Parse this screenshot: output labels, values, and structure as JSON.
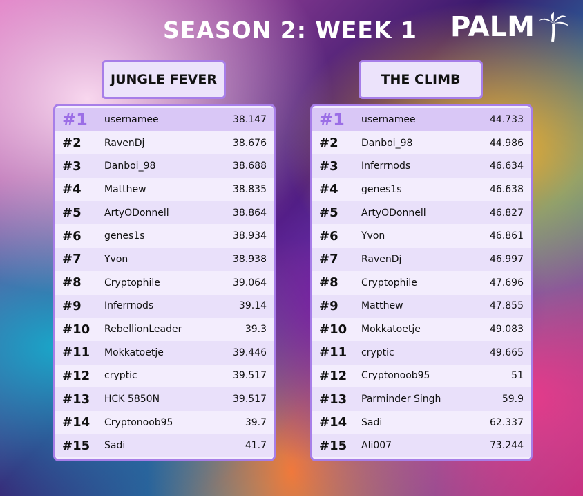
{
  "header": {
    "title": "SEASON 2: WEEK 1",
    "logo": "PALM"
  },
  "boards": [
    {
      "title": "JUNGLE FEVER",
      "rows": [
        [
          "#1",
          "usernamee",
          38.147
        ],
        [
          "#2",
          "RavenDj",
          38.676
        ],
        [
          "#3",
          "Danboi_98",
          38.688
        ],
        [
          "#4",
          "Matthew",
          38.835
        ],
        [
          "#5",
          "ArtyODonnell",
          38.864
        ],
        [
          "#6",
          "genes1s",
          38.934
        ],
        [
          "#7",
          "Yvon",
          38.938
        ],
        [
          "#8",
          "Cryptophile",
          39.064
        ],
        [
          "#9",
          "Inferrnods",
          39.14
        ],
        [
          "#10",
          "RebellionLeader",
          39.3
        ],
        [
          "#11",
          "Mokkatoetje",
          39.446
        ],
        [
          "#12",
          "cryptic",
          39.517
        ],
        [
          "#13",
          "HCK 5850N",
          39.517
        ],
        [
          "#14",
          "Cryptonoob95",
          39.7
        ],
        [
          "#15",
          "Sadi",
          41.7
        ]
      ]
    },
    {
      "title": "THE CLIMB",
      "rows": [
        [
          "#1",
          "usernamee",
          44.733
        ],
        [
          "#2",
          "Danboi_98",
          44.986
        ],
        [
          "#3",
          "Inferrnods",
          46.634
        ],
        [
          "#4",
          "genes1s",
          46.638
        ],
        [
          "#5",
          "ArtyODonnell",
          46.827
        ],
        [
          "#6",
          "Yvon",
          46.861
        ],
        [
          "#7",
          "RavenDj",
          46.997
        ],
        [
          "#8",
          "Cryptophile",
          47.696
        ],
        [
          "#9",
          "Matthew",
          47.855
        ],
        [
          "#10",
          "Mokkatoetje",
          49.083
        ],
        [
          "#11",
          "cryptic",
          49.665
        ],
        [
          "#12",
          "Cryptonoob95",
          51
        ],
        [
          "#13",
          "Parminder Singh",
          59.9
        ],
        [
          "#14",
          "Sadi",
          62.337
        ],
        [
          "#15",
          "Ali007",
          73.244
        ]
      ]
    }
  ]
}
